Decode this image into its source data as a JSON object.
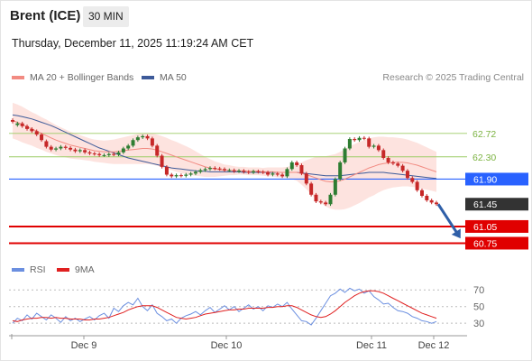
{
  "header": {
    "instrument": "Brent (ICE)",
    "timeframe": "30 MIN",
    "datetime": "Thursday, December 11, 2025 11:19:24 AM CET"
  },
  "legend": {
    "ma20_label": "MA 20 + Bollinger Bands",
    "ma50_label": "MA 50",
    "ma20_color": "#f28b82",
    "ma50_color": "#3d5a99",
    "credit": "Research © 2025 Trading Central"
  },
  "rsi_legend": {
    "rsi_label": "RSI",
    "ma_label": "9MA",
    "rsi_color": "#6b8fe0",
    "ma_color": "#e02020"
  },
  "colors": {
    "up_candle": "#2e7d32",
    "down_candle": "#c62828",
    "resistance_line": "#9ccc65",
    "pivot": "#2962ff",
    "last_price": "#333333",
    "support": "#e00000",
    "band_fill": "#fde0dc",
    "arrow": "#2f5fa8"
  },
  "chart_data": [
    {
      "type": "candlestick",
      "title": "Brent (ICE) 30 MIN",
      "x_tick_labels": [
        "Dec 9",
        "Dec 10",
        "Dec 11",
        "Dec 12"
      ],
      "ylim": [
        60.45,
        63.3
      ],
      "levels": [
        {
          "value": 62.72,
          "label": "62.72",
          "kind": "resistance"
        },
        {
          "value": 62.3,
          "label": "62.30",
          "kind": "resistance"
        },
        {
          "value": 61.9,
          "label": "61.90",
          "kind": "pivot"
        },
        {
          "value": 61.45,
          "label": "61.45",
          "kind": "last"
        },
        {
          "value": 61.05,
          "label": "61.05",
          "kind": "support"
        },
        {
          "value": 60.75,
          "label": "60.75",
          "kind": "support"
        }
      ],
      "close": [
        62.93,
        62.9,
        62.85,
        62.8,
        62.76,
        62.7,
        62.6,
        62.48,
        62.43,
        62.45,
        62.48,
        62.46,
        62.43,
        62.4,
        62.42,
        62.38,
        62.36,
        62.35,
        62.33,
        62.33,
        62.35,
        62.34,
        62.38,
        62.45,
        62.5,
        62.6,
        62.65,
        62.67,
        62.63,
        62.5,
        62.32,
        62.12,
        61.98,
        61.95,
        61.97,
        61.96,
        61.98,
        62.0,
        62.03,
        62.06,
        62.08,
        62.1,
        62.09,
        62.08,
        62.06,
        62.06,
        62.04,
        62.05,
        62.03,
        62.02,
        62.04,
        62.03,
        62.02,
        61.98,
        62.0,
        61.98,
        61.95,
        62.08,
        62.2,
        62.15,
        62.0,
        61.82,
        61.62,
        61.5,
        61.48,
        61.45,
        61.62,
        61.9,
        62.2,
        62.45,
        62.62,
        62.6,
        62.64,
        62.63,
        62.48,
        62.5,
        62.42,
        62.28,
        62.2,
        62.18,
        62.14,
        62.05,
        61.92,
        61.85,
        61.7,
        61.6,
        61.52,
        61.48,
        61.45
      ],
      "open_offsets": [
        0.03,
        -0.03,
        0.05,
        0.05,
        0.04,
        0.06,
        0.1,
        0.1,
        0.05,
        -0.02,
        -0.03,
        0.02,
        0.03,
        0.03,
        -0.02,
        0.04,
        0.02,
        0.01,
        0.02,
        0,
        -0.02,
        0.01,
        -0.04,
        -0.07,
        -0.05,
        -0.1,
        -0.05,
        -0.02,
        0.04,
        0.13,
        0.18,
        0.2,
        0.14,
        0.03,
        -0.02,
        0.01,
        -0.02,
        -0.02,
        -0.03,
        -0.03,
        -0.02,
        -0.02,
        0.01,
        0.01,
        0.02,
        0,
        0.02,
        -0.01,
        0.02,
        0.01,
        -0.02,
        0.01,
        0.01,
        0.04,
        -0.02,
        0.02,
        0.03,
        -0.13,
        -0.12,
        0.05,
        0.15,
        0.18,
        0.2,
        0.12,
        0.02,
        0.03,
        -0.17,
        -0.28,
        -0.3,
        -0.25,
        -0.17,
        0.02,
        -0.04,
        0.01,
        0.15,
        -0.02,
        0.08,
        0.14,
        0.08,
        0.02,
        0.04,
        0.09,
        0.13,
        0.07,
        0.15,
        0.1,
        0.08,
        0.04,
        0.03
      ],
      "ma20": [
        62.95,
        62.92,
        62.88,
        62.84,
        62.8,
        62.76,
        62.72,
        62.68,
        62.64,
        62.6,
        62.57,
        62.54,
        62.51,
        62.49,
        62.47,
        62.45,
        62.43,
        62.41,
        62.4,
        62.39,
        62.39,
        62.39,
        62.4,
        62.41,
        62.42,
        62.43,
        62.44,
        62.45,
        62.45,
        62.44,
        62.42,
        62.39,
        62.36,
        62.33,
        62.3,
        62.27,
        62.24,
        62.21,
        62.18,
        62.15,
        62.12,
        62.1,
        62.08,
        62.07,
        62.06,
        62.06,
        62.05,
        62.05,
        62.05,
        62.04,
        62.04,
        62.04,
        62.03,
        62.03,
        62.03,
        62.02,
        62.02,
        62.02,
        62.02,
        62.02,
        62.0,
        61.98,
        61.95,
        61.92,
        61.89,
        61.86,
        61.85,
        61.85,
        61.87,
        61.9,
        61.94,
        61.98,
        62.02,
        62.06,
        62.1,
        62.13,
        62.16,
        62.18,
        62.19,
        62.2,
        62.2,
        62.2,
        62.19,
        62.17,
        62.15,
        62.12,
        62.09,
        62.06,
        62.03
      ],
      "ma50": [
        63.05,
        63.04,
        63.02,
        63.0,
        62.98,
        62.95,
        62.92,
        62.89,
        62.86,
        62.82,
        62.78,
        62.74,
        62.7,
        62.66,
        62.62,
        62.58,
        62.54,
        62.5,
        62.46,
        62.43,
        62.4,
        62.37,
        62.34,
        62.31,
        62.28,
        62.26,
        62.24,
        62.22,
        62.2,
        62.18,
        62.16,
        62.14,
        62.12,
        62.1,
        62.09,
        62.08,
        62.07,
        62.06,
        62.05,
        62.04,
        62.04,
        62.03,
        62.03,
        62.03,
        62.03,
        62.03,
        62.03,
        62.03,
        62.02,
        62.02,
        62.02,
        62.02,
        62.02,
        62.02,
        62.02,
        62.02,
        62.02,
        62.02,
        62.02,
        62.02,
        62.01,
        62.0,
        61.99,
        61.98,
        61.97,
        61.96,
        61.96,
        61.96,
        61.96,
        61.97,
        61.98,
        61.99,
        62.0,
        62.01,
        62.02,
        62.02,
        62.02,
        62.02,
        62.01,
        62.0,
        61.99,
        61.98,
        61.97,
        61.96,
        61.95,
        61.94,
        61.93,
        61.92,
        61.91
      ],
      "band_width": [
        0.32,
        0.32,
        0.32,
        0.31,
        0.3,
        0.3,
        0.29,
        0.29,
        0.28,
        0.27,
        0.26,
        0.25,
        0.24,
        0.23,
        0.22,
        0.21,
        0.2,
        0.2,
        0.2,
        0.2,
        0.21,
        0.22,
        0.23,
        0.24,
        0.25,
        0.26,
        0.27,
        0.28,
        0.28,
        0.28,
        0.28,
        0.28,
        0.28,
        0.27,
        0.27,
        0.26,
        0.25,
        0.24,
        0.22,
        0.2,
        0.18,
        0.16,
        0.14,
        0.12,
        0.1,
        0.09,
        0.08,
        0.07,
        0.07,
        0.07,
        0.07,
        0.07,
        0.07,
        0.08,
        0.08,
        0.09,
        0.09,
        0.1,
        0.12,
        0.15,
        0.2,
        0.26,
        0.32,
        0.38,
        0.42,
        0.45,
        0.48,
        0.5,
        0.52,
        0.54,
        0.55,
        0.55,
        0.55,
        0.54,
        0.53,
        0.52,
        0.5,
        0.48,
        0.46,
        0.45,
        0.44,
        0.43,
        0.42,
        0.41,
        0.4,
        0.39,
        0.38,
        0.37,
        0.36
      ]
    },
    {
      "type": "line",
      "title": "RSI",
      "ylim": [
        15,
        80
      ],
      "y_tick_labels": [
        "70",
        "50",
        "30"
      ],
      "y_ticks": [
        70,
        50,
        30
      ],
      "series": [
        {
          "name": "RSI",
          "values": [
            30,
            36,
            33,
            40,
            35,
            42,
            38,
            34,
            40,
            36,
            31,
            38,
            33,
            36,
            32,
            35,
            38,
            34,
            39,
            42,
            36,
            48,
            44,
            51,
            55,
            52,
            60,
            50,
            45,
            52,
            42,
            38,
            33,
            35,
            30,
            36,
            39,
            41,
            44,
            40,
            45,
            49,
            43,
            47,
            51,
            46,
            50,
            44,
            48,
            52,
            47,
            50,
            45,
            51,
            49,
            53,
            50,
            55,
            47,
            40,
            33,
            32,
            28,
            36,
            45,
            54,
            63,
            66,
            71,
            67,
            72,
            69,
            71,
            66,
            69,
            62,
            58,
            53,
            54,
            49,
            45,
            44,
            42,
            38,
            36,
            33,
            32,
            30,
            32
          ]
        },
        {
          "name": "9MA",
          "values": [
            33,
            32,
            34,
            35,
            36,
            36,
            37,
            37,
            36,
            37,
            36,
            36,
            35,
            35,
            35,
            34,
            34,
            35,
            35,
            36,
            37,
            39,
            41,
            43,
            46,
            48,
            50,
            51,
            51,
            51,
            49,
            46,
            43,
            40,
            37,
            36,
            35,
            36,
            37,
            39,
            41,
            42,
            43,
            44,
            45,
            46,
            46,
            47,
            47,
            48,
            48,
            48,
            48,
            49,
            49,
            50,
            50,
            51,
            51,
            49,
            46,
            43,
            40,
            38,
            37,
            38,
            41,
            45,
            50,
            55,
            59,
            63,
            66,
            68,
            69,
            69,
            68,
            66,
            63,
            60,
            57,
            54,
            51,
            48,
            45,
            42,
            40,
            38,
            36
          ]
        }
      ]
    }
  ]
}
